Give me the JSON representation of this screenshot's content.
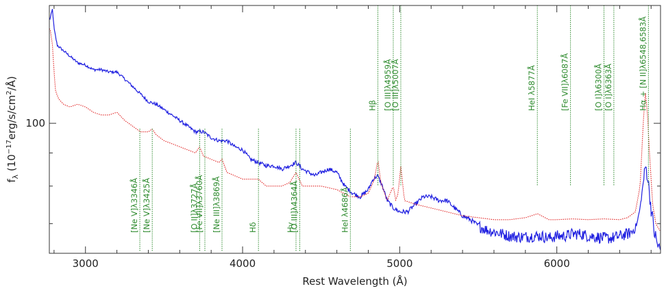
{
  "chart_data": {
    "type": "line",
    "xlabel": "Rest Wavelength (Å)",
    "ylabel_main": "f",
    "ylabel_sub": "λ",
    "ylabel_rest": " (10",
    "ylabel_exp": "−17",
    "ylabel_units": "erg/s/cm",
    "ylabel_units_exp": "2",
    "ylabel_end": "/Å)",
    "xlim": [
      2770,
      6660
    ],
    "ylim": [
      63,
      152
    ],
    "yscale": "log",
    "x_ticks": [
      3000,
      4000,
      5000,
      6000
    ],
    "x_tick_labels": [
      "3000",
      "4000",
      "5000",
      "6000"
    ],
    "y_ticks": [
      100
    ],
    "y_tick_labels": [
      "100"
    ],
    "series": [
      {
        "style": "solid",
        "color": "#1f1fe0",
        "x": [
          2775,
          2790,
          2800,
          2820,
          2850,
          2900,
          2950,
          3000,
          3050,
          3100,
          3150,
          3200,
          3250,
          3300,
          3350,
          3400,
          3450,
          3500,
          3550,
          3600,
          3650,
          3700,
          3750,
          3800,
          3850,
          3900,
          3950,
          4000,
          4050,
          4100,
          4150,
          4200,
          4250,
          4300,
          4340,
          4380,
          4420,
          4460,
          4500,
          4550,
          4600,
          4650,
          4700,
          4750,
          4800,
          4830,
          4860,
          4890,
          4920,
          4960,
          5000,
          5050,
          5100,
          5150,
          5200,
          5250,
          5300,
          5350,
          5400,
          5450,
          5500,
          5550,
          5600,
          5650,
          5700,
          5750,
          5800,
          5850,
          5900,
          5950,
          6000,
          6050,
          6100,
          6150,
          6200,
          6250,
          6300,
          6350,
          6400,
          6450,
          6480,
          6510,
          6530,
          6550,
          6565,
          6580,
          6600,
          6620,
          6640,
          6660
        ],
        "y": [
          145,
          150,
          140,
          132,
          130,
          127,
          124,
          123,
          121,
          121,
          120,
          120,
          117,
          114,
          111,
          108,
          107,
          105,
          103,
          101,
          99,
          97,
          97,
          95,
          94,
          94,
          92,
          91,
          88,
          87,
          86,
          86,
          85,
          86,
          87,
          85,
          84,
          83,
          84,
          85,
          84,
          80,
          78,
          77,
          79,
          82,
          83,
          80,
          76,
          74,
          73,
          73,
          75,
          77,
          77,
          76,
          76,
          74,
          72,
          71,
          69.5,
          68.5,
          68,
          67.5,
          67,
          66.8,
          66.8,
          67,
          67,
          66.5,
          67,
          67,
          67.5,
          67.5,
          67,
          66.8,
          66.5,
          66.5,
          67,
          67.5,
          68,
          70,
          74,
          81,
          86,
          82,
          74,
          68,
          65,
          63.5
        ]
      },
      {
        "style": "dotted",
        "color": "#e02020",
        "x": [
          2775,
          2790,
          2800,
          2810,
          2830,
          2860,
          2900,
          2950,
          3000,
          3050,
          3100,
          3150,
          3200,
          3250,
          3300,
          3350,
          3400,
          3425,
          3450,
          3500,
          3550,
          3600,
          3650,
          3700,
          3727,
          3750,
          3800,
          3850,
          3869,
          3900,
          3950,
          4000,
          4050,
          4100,
          4150,
          4200,
          4250,
          4300,
          4340,
          4380,
          4420,
          4500,
          4600,
          4686,
          4750,
          4800,
          4840,
          4861,
          4880,
          4920,
          4959,
          4975,
          4990,
          5007,
          5030,
          5100,
          5200,
          5300,
          5400,
          5500,
          5600,
          5700,
          5800,
          5877,
          5950,
          6000,
          6100,
          6200,
          6300,
          6400,
          6450,
          6500,
          6530,
          6550,
          6563,
          6575,
          6590,
          6610,
          6630,
          6660
        ],
        "y": [
          140,
          132,
          120,
          112,
          109,
          107,
          106,
          107,
          106,
          104,
          103,
          103,
          104,
          101,
          99,
          97,
          97,
          98,
          96,
          94,
          93,
          92,
          91,
          90,
          92,
          89,
          88,
          87,
          88,
          84,
          83,
          82,
          82,
          82,
          80,
          80,
          80,
          81,
          84,
          80,
          80,
          80,
          79,
          77,
          77,
          78,
          82,
          88,
          81,
          76,
          80,
          76,
          78,
          86,
          76,
          75,
          74,
          73,
          72,
          71.5,
          71,
          71,
          71.5,
          72.5,
          71,
          71,
          71.2,
          71,
          71.2,
          71,
          71.5,
          73,
          80,
          100,
          112,
          105,
          90,
          75,
          70,
          68
        ]
      }
    ],
    "emission_lines": [
      {
        "x": 3346,
        "label": "[Ne V]λ3346Å",
        "position": "bottom"
      },
      {
        "x": 3425,
        "label": "[Ne V]λ3425Å",
        "position": "bottom"
      },
      {
        "x": 3727,
        "label": "[O II]λ3727Å",
        "position": "bottom"
      },
      {
        "x": 3760,
        "label": "[Fe VII]λ3760Å",
        "position": "bottom"
      },
      {
        "x": 3869,
        "label": "[Ne III]λ3869Å",
        "position": "bottom"
      },
      {
        "x": 4101,
        "label": "Hδ",
        "position": "bottom"
      },
      {
        "x": 4340,
        "label": "Hγ",
        "position": "bottom"
      },
      {
        "x": 4364,
        "label": "[O III]λ4364Å",
        "position": "bottom"
      },
      {
        "x": 4686,
        "label": "HeI λ4686Å",
        "position": "bottom"
      },
      {
        "x": 4861,
        "label": "Hβ",
        "position": "top"
      },
      {
        "x": 4959,
        "label": "[O III]λ4959Å",
        "position": "top"
      },
      {
        "x": 5007,
        "label": "[O III]λ5007Å",
        "position": "top"
      },
      {
        "x": 5876,
        "label": "HeI λ5877Å",
        "position": "top"
      },
      {
        "x": 6087,
        "label": "[Fe VII]λ6087Å",
        "position": "top"
      },
      {
        "x": 6300,
        "label": "[O I]λ6300Å",
        "position": "top"
      },
      {
        "x": 6363,
        "label": "[O I]λ6363Å",
        "position": "top"
      },
      {
        "x": 6583,
        "label": "Hα + [N II]λ6548,6583Å",
        "position": "top"
      }
    ],
    "grid": false
  }
}
